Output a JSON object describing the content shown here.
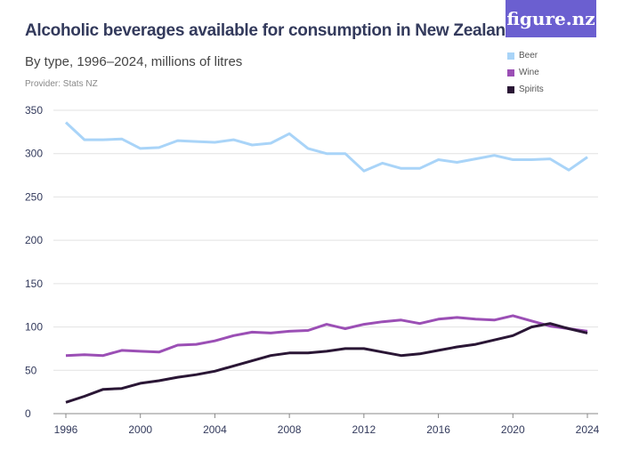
{
  "logo": "figure.nz",
  "chart_data": {
    "type": "line",
    "title": "Alcoholic beverages available for consumption in New Zealand",
    "subtitle": "By type, 1996–2024, millions of litres",
    "provider": "Provider: Stats NZ",
    "x": [
      1996,
      1997,
      1998,
      1999,
      2000,
      2001,
      2002,
      2003,
      2004,
      2005,
      2006,
      2007,
      2008,
      2009,
      2010,
      2011,
      2012,
      2013,
      2014,
      2015,
      2016,
      2017,
      2018,
      2019,
      2020,
      2021,
      2022,
      2023,
      2024
    ],
    "xticks": [
      "1996",
      "2000",
      "2004",
      "2008",
      "2012",
      "2016",
      "2020",
      "2024"
    ],
    "yticks": [
      "0",
      "50",
      "100",
      "150",
      "200",
      "250",
      "300",
      "350"
    ],
    "ylim": [
      0,
      350
    ],
    "grid": true,
    "legend_position": "top-right",
    "series": [
      {
        "name": "Beer",
        "color": "#a9d4f8",
        "values": [
          336,
          316,
          316,
          317,
          306,
          307,
          315,
          314,
          313,
          316,
          310,
          312,
          323,
          306,
          300,
          300,
          280,
          289,
          283,
          283,
          293,
          290,
          294,
          298,
          293,
          293,
          294,
          281,
          296
        ]
      },
      {
        "name": "Wine",
        "color": "#9b4fb5",
        "values": [
          67,
          68,
          67,
          73,
          72,
          71,
          79,
          80,
          84,
          90,
          94,
          93,
          95,
          96,
          103,
          98,
          103,
          106,
          108,
          104,
          109,
          111,
          109,
          108,
          113,
          107,
          101,
          98,
          95
        ]
      },
      {
        "name": "Spirits",
        "color": "#2a1635",
        "values": [
          13,
          20,
          28,
          29,
          35,
          38,
          42,
          45,
          49,
          55,
          61,
          67,
          70,
          70,
          72,
          75,
          75,
          71,
          67,
          69,
          73,
          77,
          80,
          85,
          90,
          100,
          104,
          98,
          93
        ]
      }
    ]
  }
}
